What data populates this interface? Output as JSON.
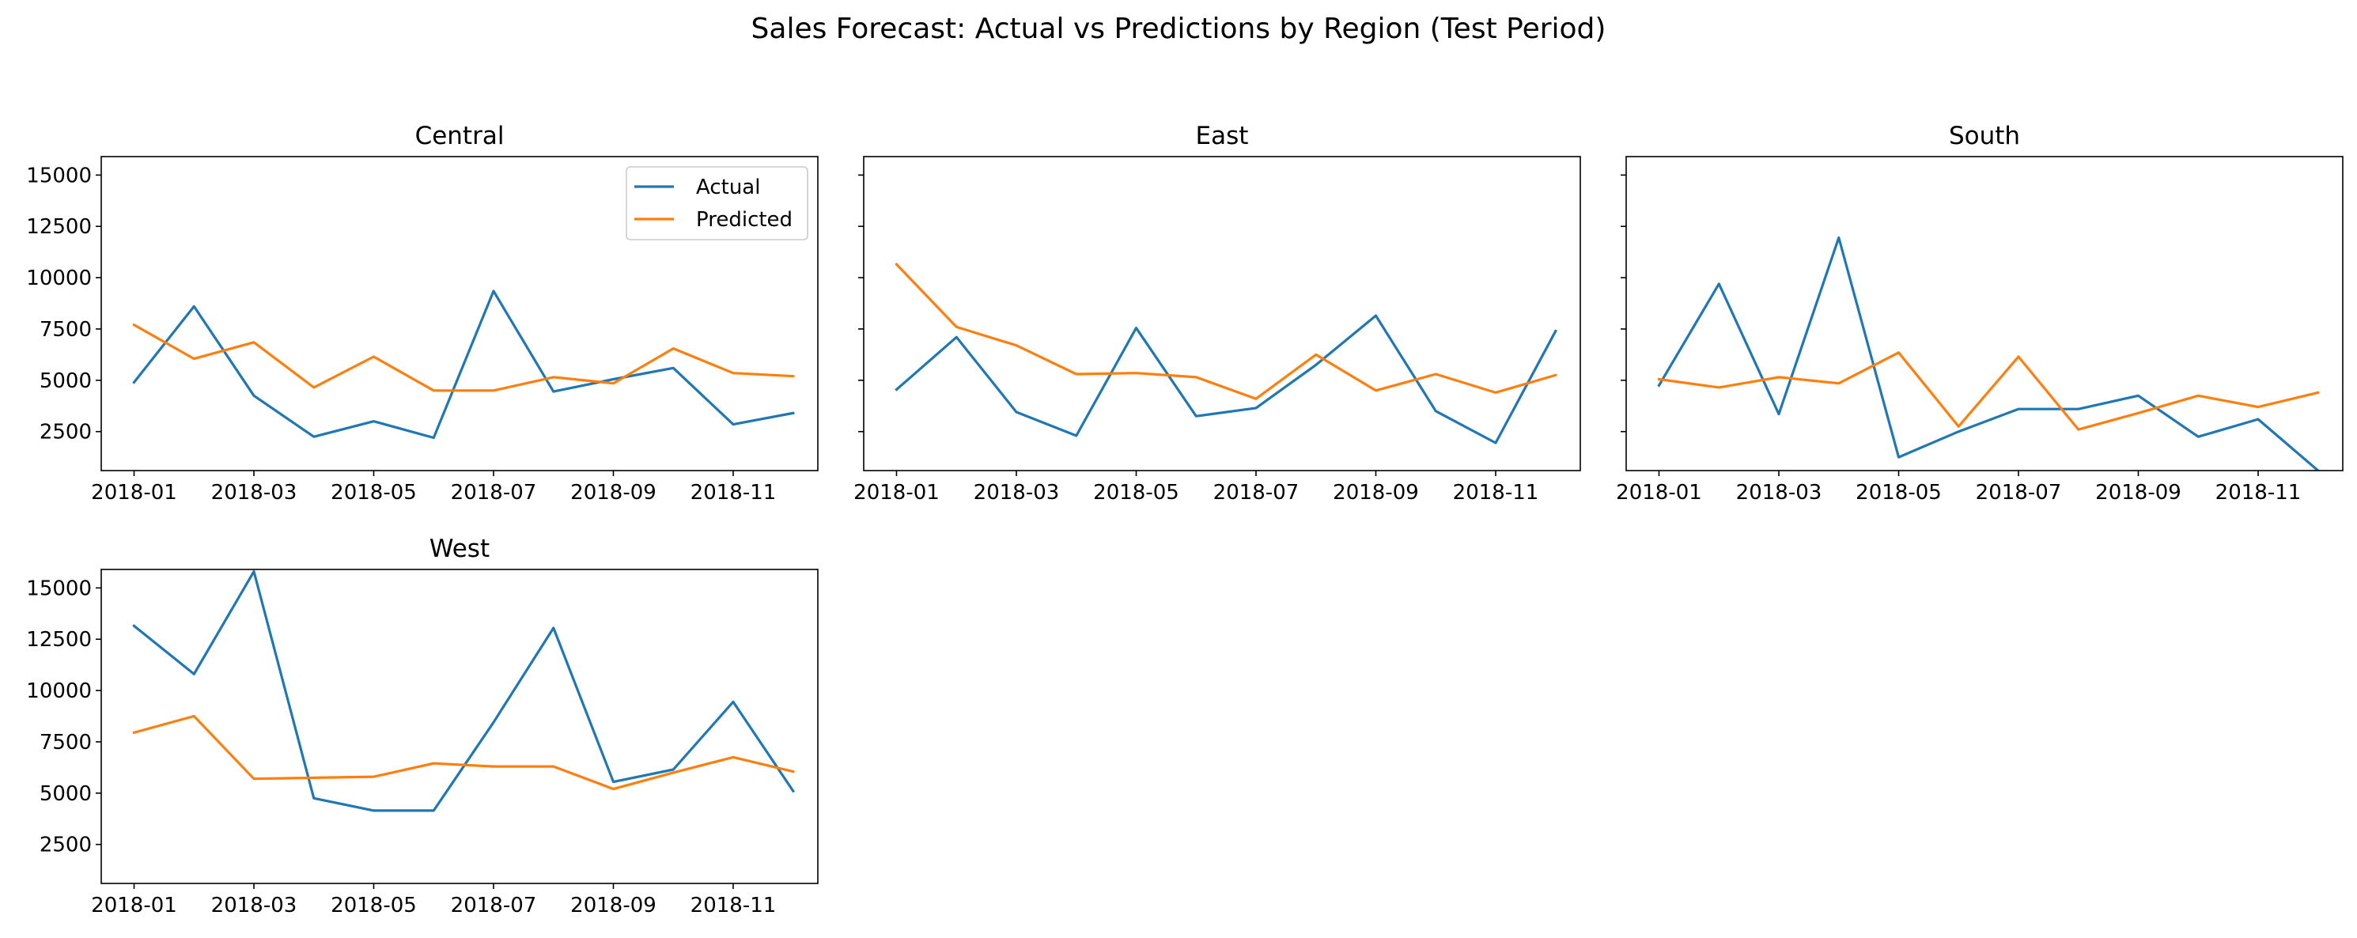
{
  "title": "Sales Forecast: Actual vs Predictions by Region (Test Period)",
  "colors": {
    "actual": "#1f77b4",
    "predicted": "#ff7f0e"
  },
  "legend": {
    "actual_label": "Actual",
    "predicted_label": "Predicted",
    "location": "upper right, Central panel"
  },
  "chart_data": [
    {
      "type": "line",
      "title": "Central",
      "x": [
        "2018-01",
        "2018-02",
        "2018-03",
        "2018-04",
        "2018-05",
        "2018-06",
        "2018-07",
        "2018-08",
        "2018-09",
        "2018-10",
        "2018-11",
        "2018-12"
      ],
      "x_ticks": [
        "2018-01",
        "2018-03",
        "2018-05",
        "2018-07",
        "2018-09",
        "2018-11"
      ],
      "ylim": [
        600,
        15900
      ],
      "y_ticks": [
        2500,
        5000,
        7500,
        10000,
        12500,
        15000
      ],
      "grid": false,
      "series": [
        {
          "name": "Actual",
          "values": [
            4900,
            8600,
            4250,
            2250,
            3000,
            2200,
            9350,
            4450,
            5050,
            5600,
            2850,
            3400
          ]
        },
        {
          "name": "Predicted",
          "values": [
            7700,
            6050,
            6850,
            4650,
            6150,
            4500,
            4500,
            5150,
            4850,
            6550,
            5350,
            5200
          ]
        }
      ]
    },
    {
      "type": "line",
      "title": "East",
      "x": [
        "2018-01",
        "2018-02",
        "2018-03",
        "2018-04",
        "2018-05",
        "2018-06",
        "2018-07",
        "2018-08",
        "2018-09",
        "2018-10",
        "2018-11",
        "2018-12"
      ],
      "x_ticks": [
        "2018-01",
        "2018-03",
        "2018-05",
        "2018-07",
        "2018-09",
        "2018-11"
      ],
      "ylim": [
        600,
        15900
      ],
      "grid": false,
      "series": [
        {
          "name": "Actual",
          "values": [
            4550,
            7100,
            3450,
            2300,
            7550,
            3250,
            3650,
            5750,
            8150,
            3500,
            1950,
            7400
          ]
        },
        {
          "name": "Predicted",
          "values": [
            10650,
            7600,
            6700,
            5300,
            5350,
            5150,
            4100,
            6250,
            4500,
            5300,
            4400,
            5250
          ]
        }
      ]
    },
    {
      "type": "line",
      "title": "South",
      "x": [
        "2018-01",
        "2018-02",
        "2018-03",
        "2018-04",
        "2018-05",
        "2018-06",
        "2018-07",
        "2018-08",
        "2018-09",
        "2018-10",
        "2018-11",
        "2018-12"
      ],
      "x_ticks": [
        "2018-01",
        "2018-03",
        "2018-05",
        "2018-07",
        "2018-09",
        "2018-11"
      ],
      "ylim": [
        600,
        15900
      ],
      "grid": false,
      "series": [
        {
          "name": "Actual",
          "values": [
            4750,
            9700,
            3350,
            11950,
            1250,
            2500,
            3600,
            3600,
            4250,
            2250,
            3100,
            600
          ]
        },
        {
          "name": "Predicted",
          "values": [
            5050,
            4650,
            5150,
            4850,
            6350,
            2750,
            6150,
            2600,
            3400,
            4250,
            3700,
            4400
          ]
        }
      ]
    },
    {
      "type": "line",
      "title": "West",
      "x": [
        "2018-01",
        "2018-02",
        "2018-03",
        "2018-04",
        "2018-05",
        "2018-06",
        "2018-07",
        "2018-08",
        "2018-09",
        "2018-10",
        "2018-11",
        "2018-12"
      ],
      "x_ticks": [
        "2018-01",
        "2018-03",
        "2018-05",
        "2018-07",
        "2018-09",
        "2018-11"
      ],
      "ylim": [
        600,
        15900
      ],
      "y_ticks": [
        2500,
        5000,
        7500,
        10000,
        12500,
        15000
      ],
      "grid": false,
      "series": [
        {
          "name": "Actual",
          "values": [
            13150,
            10800,
            15800,
            4750,
            4150,
            4150,
            8450,
            13050,
            5550,
            6150,
            9450,
            5100
          ]
        },
        {
          "name": "Predicted",
          "values": [
            7950,
            8750,
            5700,
            5750,
            5800,
            6450,
            6300,
            6300,
            5200,
            6000,
            6750,
            6050
          ]
        }
      ]
    }
  ]
}
